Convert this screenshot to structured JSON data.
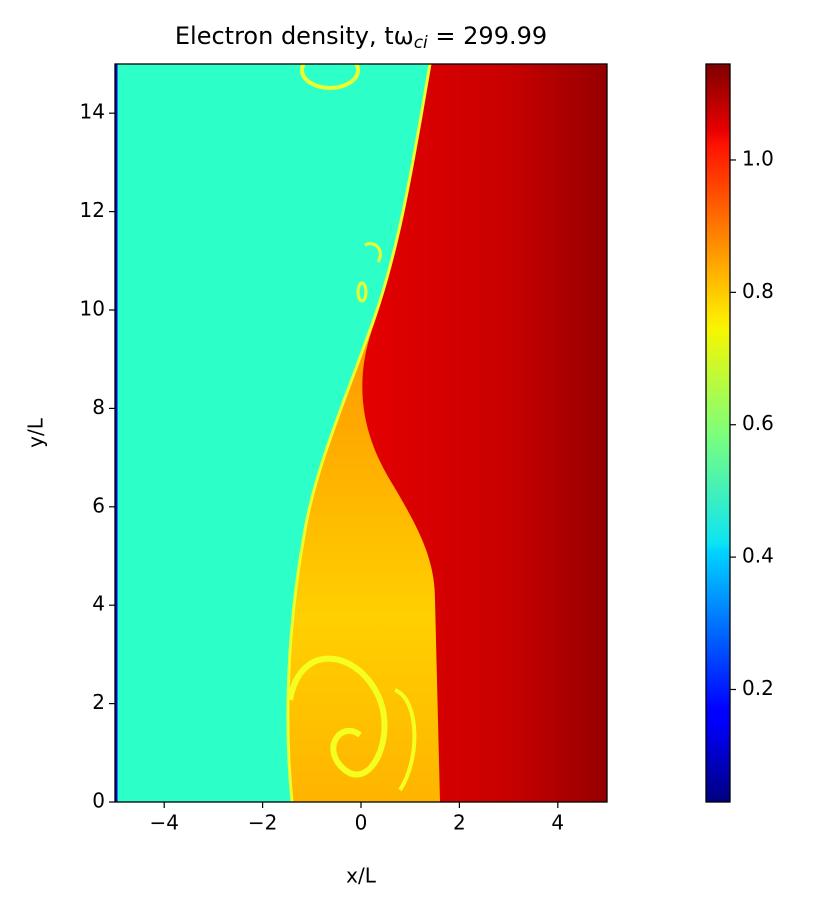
{
  "chart_data": {
    "type": "heatmap",
    "title": "Electron density, tω",
    "title_subscript": "ci",
    "title_suffix": " = 299.99",
    "xlabel": "x/L",
    "ylabel": "y/L",
    "xlim": [
      -5,
      5
    ],
    "ylim": [
      0,
      15
    ],
    "xticks": [
      {
        "value": -4,
        "label": "−4"
      },
      {
        "value": -2,
        "label": "−2"
      },
      0,
      2,
      4
    ],
    "yticks": [
      0,
      2,
      4,
      6,
      8,
      10,
      12,
      14
    ],
    "colormap": "jet",
    "clim": [
      0.03,
      1.145
    ],
    "cticks": [
      0.2,
      0.4,
      0.6,
      0.8,
      {
        "value": 1,
        "label": "1.0"
      }
    ]
  }
}
